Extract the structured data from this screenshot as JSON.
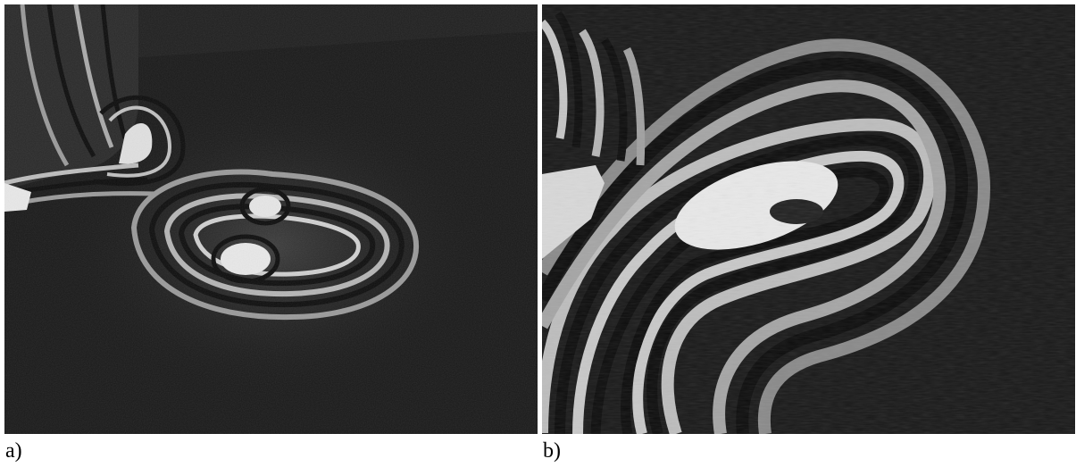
{
  "figure": {
    "panels": [
      {
        "id": "a",
        "label": "a)"
      },
      {
        "id": "b",
        "label": "b)"
      }
    ],
    "colors": {
      "background": "#1a1a1a",
      "fringe_light": "#e6e6e6",
      "fringe_mid": "#8c8c8c",
      "fringe_dark": "#0d0d0d"
    }
  }
}
